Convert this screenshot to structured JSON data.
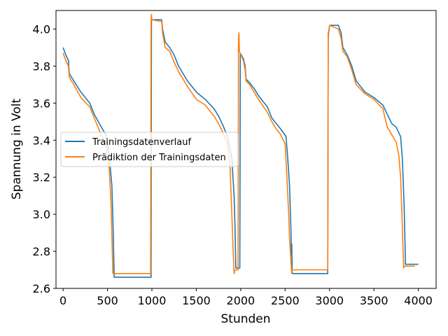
{
  "chart_data": {
    "type": "line",
    "xlabel": "Stunden",
    "ylabel": "Spannung in Volt",
    "xlim": [
      -80,
      4200
    ],
    "ylim": [
      2.6,
      4.1
    ],
    "xticks": [
      0,
      500,
      1000,
      1500,
      2000,
      2500,
      3000,
      3500,
      4000
    ],
    "yticks": [
      2.6,
      2.8,
      3.0,
      3.2,
      3.4,
      3.6,
      3.8,
      4.0
    ],
    "ytick_labels": [
      "2.6",
      "2.8",
      "3.0",
      "3.2",
      "3.4",
      "3.6",
      "3.8",
      "4.0"
    ],
    "grid": false,
    "legend_position": "center-left",
    "series": [
      {
        "name": "Trainingsdatenverlauf",
        "color": "#1f77b4",
        "points": [
          [
            0,
            3.9
          ],
          [
            30,
            3.86
          ],
          [
            60,
            3.83
          ],
          [
            70,
            3.76
          ],
          [
            120,
            3.72
          ],
          [
            200,
            3.66
          ],
          [
            300,
            3.6
          ],
          [
            350,
            3.54
          ],
          [
            420,
            3.48
          ],
          [
            480,
            3.43
          ],
          [
            520,
            3.32
          ],
          [
            550,
            3.15
          ],
          [
            565,
            2.9
          ],
          [
            575,
            2.66
          ],
          [
            990,
            2.66
          ],
          [
            995,
            4.05
          ],
          [
            1000,
            4.05
          ],
          [
            1110,
            4.05
          ],
          [
            1120,
            4.0
          ],
          [
            1150,
            3.93
          ],
          [
            1200,
            3.9
          ],
          [
            1250,
            3.86
          ],
          [
            1300,
            3.8
          ],
          [
            1400,
            3.72
          ],
          [
            1500,
            3.66
          ],
          [
            1600,
            3.62
          ],
          [
            1700,
            3.57
          ],
          [
            1750,
            3.53
          ],
          [
            1800,
            3.48
          ],
          [
            1850,
            3.42
          ],
          [
            1900,
            3.3
          ],
          [
            1925,
            3.1
          ],
          [
            1935,
            2.95
          ],
          [
            1945,
            2.71
          ],
          [
            1990,
            2.71
          ],
          [
            1995,
            3.87
          ],
          [
            2030,
            3.84
          ],
          [
            2050,
            3.8
          ],
          [
            2060,
            3.73
          ],
          [
            2100,
            3.71
          ],
          [
            2150,
            3.68
          ],
          [
            2200,
            3.64
          ],
          [
            2300,
            3.58
          ],
          [
            2350,
            3.52
          ],
          [
            2400,
            3.49
          ],
          [
            2450,
            3.46
          ],
          [
            2510,
            3.42
          ],
          [
            2530,
            3.3
          ],
          [
            2550,
            3.15
          ],
          [
            2560,
            3.0
          ],
          [
            2565,
            2.92
          ],
          [
            2570,
            2.78
          ],
          [
            2575,
            2.84
          ],
          [
            2580,
            2.68
          ],
          [
            2980,
            2.68
          ],
          [
            2985,
            3.97
          ],
          [
            3000,
            4.02
          ],
          [
            3100,
            4.02
          ],
          [
            3130,
            3.98
          ],
          [
            3150,
            3.9
          ],
          [
            3200,
            3.86
          ],
          [
            3250,
            3.8
          ],
          [
            3300,
            3.72
          ],
          [
            3400,
            3.66
          ],
          [
            3500,
            3.63
          ],
          [
            3600,
            3.59
          ],
          [
            3650,
            3.54
          ],
          [
            3700,
            3.49
          ],
          [
            3750,
            3.47
          ],
          [
            3800,
            3.42
          ],
          [
            3820,
            3.3
          ],
          [
            3840,
            3.05
          ],
          [
            3848,
            2.9
          ],
          [
            3855,
            2.73
          ],
          [
            4000,
            2.73
          ]
        ]
      },
      {
        "name": "Prädiktion der Trainingsdaten",
        "color": "#ff7f0e",
        "points": [
          [
            0,
            3.87
          ],
          [
            30,
            3.83
          ],
          [
            60,
            3.8
          ],
          [
            70,
            3.74
          ],
          [
            120,
            3.7
          ],
          [
            200,
            3.63
          ],
          [
            300,
            3.58
          ],
          [
            350,
            3.52
          ],
          [
            420,
            3.44
          ],
          [
            480,
            3.38
          ],
          [
            520,
            3.24
          ],
          [
            540,
            3.05
          ],
          [
            550,
            2.88
          ],
          [
            560,
            2.68
          ],
          [
            985,
            2.68
          ],
          [
            990,
            4.04
          ],
          [
            995,
            4.08
          ],
          [
            1000,
            4.05
          ],
          [
            1110,
            4.04
          ],
          [
            1120,
            3.98
          ],
          [
            1150,
            3.9
          ],
          [
            1200,
            3.88
          ],
          [
            1250,
            3.82
          ],
          [
            1300,
            3.77
          ],
          [
            1400,
            3.69
          ],
          [
            1500,
            3.62
          ],
          [
            1600,
            3.59
          ],
          [
            1700,
            3.53
          ],
          [
            1750,
            3.49
          ],
          [
            1800,
            3.44
          ],
          [
            1850,
            3.38
          ],
          [
            1880,
            3.25
          ],
          [
            1900,
            3.0
          ],
          [
            1915,
            2.8
          ],
          [
            1925,
            2.68
          ],
          [
            1935,
            2.7
          ],
          [
            1970,
            2.7
          ],
          [
            1975,
            3.95
          ],
          [
            1980,
            3.98
          ],
          [
            1985,
            3.88
          ],
          [
            2030,
            3.83
          ],
          [
            2050,
            3.78
          ],
          [
            2060,
            3.72
          ],
          [
            2100,
            3.7
          ],
          [
            2150,
            3.66
          ],
          [
            2200,
            3.62
          ],
          [
            2300,
            3.55
          ],
          [
            2350,
            3.5
          ],
          [
            2400,
            3.46
          ],
          [
            2450,
            3.43
          ],
          [
            2500,
            3.38
          ],
          [
            2520,
            3.2
          ],
          [
            2540,
            3.0
          ],
          [
            2550,
            2.86
          ],
          [
            2565,
            2.75
          ],
          [
            2575,
            2.68
          ],
          [
            2580,
            2.7
          ],
          [
            2980,
            2.7
          ],
          [
            2985,
            3.95
          ],
          [
            3000,
            4.02
          ],
          [
            3100,
            4.0
          ],
          [
            3130,
            3.95
          ],
          [
            3150,
            3.88
          ],
          [
            3200,
            3.85
          ],
          [
            3250,
            3.78
          ],
          [
            3300,
            3.7
          ],
          [
            3400,
            3.65
          ],
          [
            3500,
            3.62
          ],
          [
            3600,
            3.57
          ],
          [
            3650,
            3.47
          ],
          [
            3700,
            3.43
          ],
          [
            3750,
            3.39
          ],
          [
            3780,
            3.32
          ],
          [
            3800,
            3.2
          ],
          [
            3815,
            3.0
          ],
          [
            3825,
            2.85
          ],
          [
            3835,
            2.71
          ],
          [
            3845,
            2.72
          ],
          [
            3960,
            2.72
          ]
        ]
      }
    ]
  }
}
